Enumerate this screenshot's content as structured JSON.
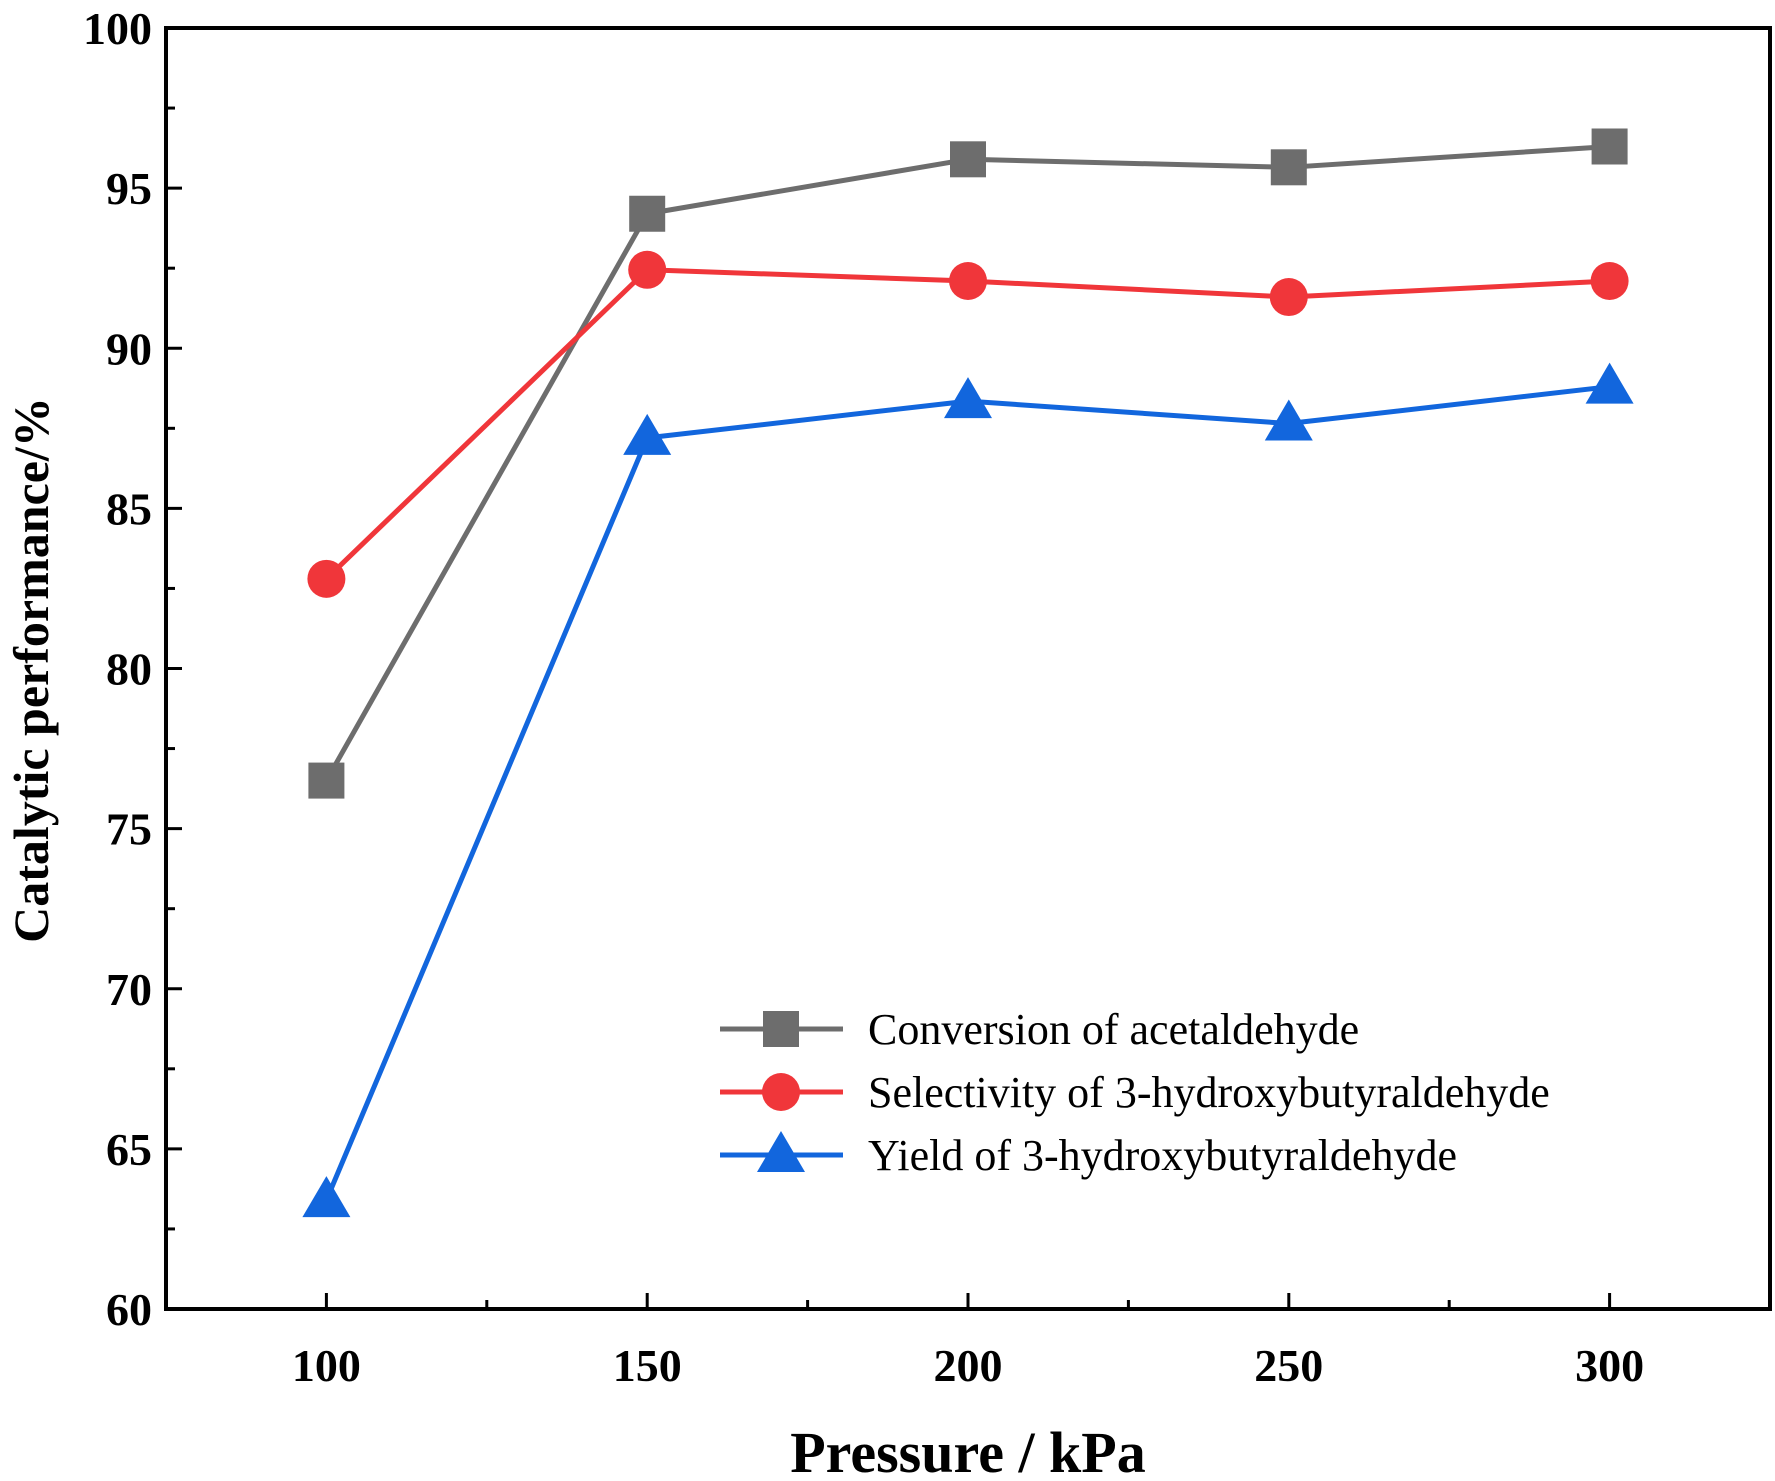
{
  "chart_data": {
    "type": "line",
    "title": "",
    "xlabel": "Pressure / kPa",
    "ylabel": "Catalytic performance/%",
    "x": [
      100,
      150,
      200,
      250,
      300
    ],
    "xlim": [
      75,
      325
    ],
    "ylim": [
      60,
      100
    ],
    "x_ticks": [
      100,
      150,
      200,
      250,
      300
    ],
    "x_minor_ticks": [
      125,
      175,
      225,
      275
    ],
    "y_ticks": [
      60,
      65,
      70,
      75,
      80,
      85,
      90,
      95,
      100
    ],
    "grid": false,
    "legend_position": "bottom-right",
    "series": [
      {
        "name": "Conversion of acetaldehyde",
        "values": [
          76.5,
          94.2,
          95.9,
          95.65,
          96.3
        ],
        "color": "#6d6d6d",
        "marker": "square"
      },
      {
        "name": "Selectivity of 3-hydroxybutyraldehyde",
        "values": [
          82.8,
          92.45,
          92.1,
          91.6,
          92.1
        ],
        "color": "#f0363a",
        "marker": "circle"
      },
      {
        "name": "Yield of 3-hydroxybutyraldehyde",
        "values": [
          63.4,
          87.2,
          88.35,
          87.65,
          88.8
        ],
        "color": "#1266dd",
        "marker": "triangle"
      }
    ]
  }
}
